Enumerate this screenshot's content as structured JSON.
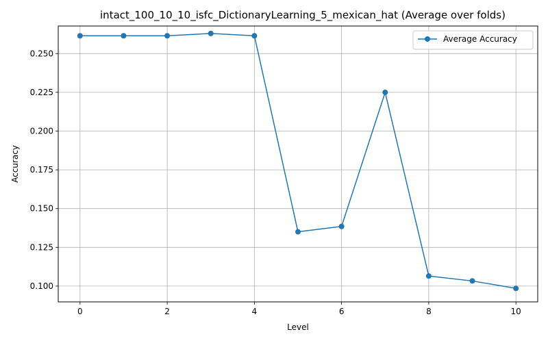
{
  "chart_data": {
    "type": "line",
    "title": "intact_100_10_10_isfc_DictionaryLearning_5_mexican_hat (Average over folds)",
    "xlabel": "Level",
    "ylabel": "Accuracy",
    "xlim": [
      -0.5,
      10.5
    ],
    "ylim": [
      0.0898,
      0.2678
    ],
    "xticks": [
      0,
      2,
      4,
      6,
      8,
      10
    ],
    "xtick_labels": [
      "0",
      "2",
      "4",
      "6",
      "8",
      "10"
    ],
    "yticks": [
      0.1,
      0.125,
      0.15,
      0.175,
      0.2,
      0.225,
      0.25
    ],
    "ytick_labels": [
      "0.100",
      "0.125",
      "0.150",
      "0.175",
      "0.200",
      "0.225",
      "0.250"
    ],
    "grid": true,
    "legend_position": "top-right",
    "series": [
      {
        "name": "Average Accuracy",
        "color": "#1f77b4",
        "marker": "circle",
        "x": [
          0,
          1,
          2,
          3,
          4,
          5,
          6,
          7,
          8,
          9,
          10
        ],
        "y": [
          0.2615,
          0.2615,
          0.2615,
          0.263,
          0.2615,
          0.135,
          0.1385,
          0.225,
          0.1065,
          0.1033,
          0.0985
        ]
      }
    ]
  }
}
